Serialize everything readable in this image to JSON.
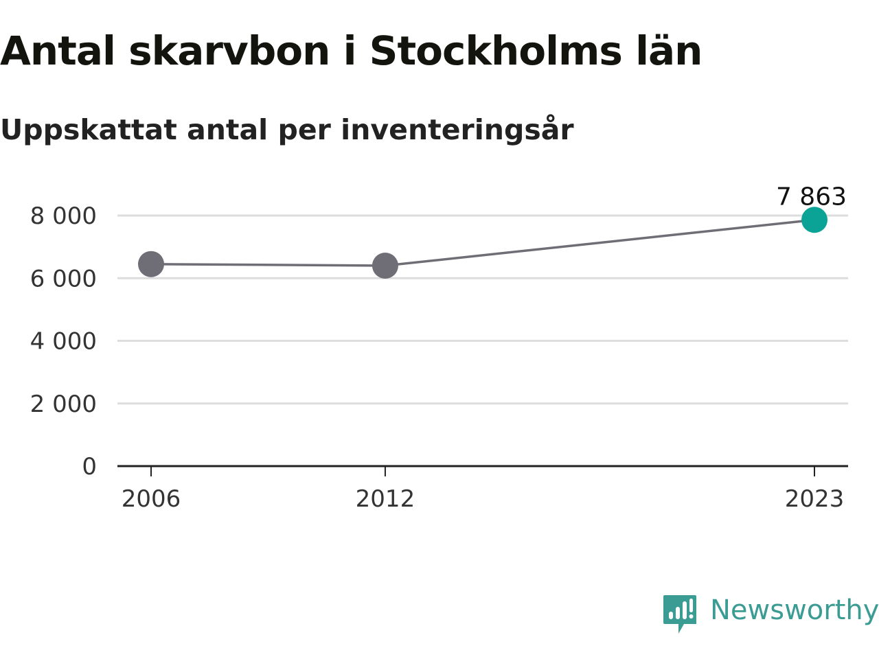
{
  "title": "Antal skarvbon i Stockholms län",
  "subtitle": "Uppskattat antal per inventeringsår",
  "brand": {
    "name": "Newsworthy",
    "color": "#3b9c93",
    "icon": "newsworthy-logo-icon"
  },
  "colors": {
    "line": "#6f6e76",
    "point": "#6f6e76",
    "highlight": "#0aa396",
    "grid": "#dddddd",
    "axis": "#222222"
  },
  "chart_data": {
    "type": "line",
    "title": "Antal skarvbon i Stockholms län",
    "subtitle": "Uppskattat antal per inventeringsår",
    "xlabel": "",
    "ylabel": "",
    "x": [
      2006,
      2012,
      2023
    ],
    "x_tick_labels": [
      "2006",
      "2012",
      "2023"
    ],
    "values": [
      6450,
      6400,
      7863
    ],
    "ylim": [
      0,
      8000
    ],
    "y_ticks": [
      0,
      2000,
      4000,
      6000,
      8000
    ],
    "y_tick_labels": [
      "0",
      "2 000",
      "4 000",
      "6 000",
      "8 000"
    ],
    "grid": true,
    "highlight": {
      "index": 2,
      "label": "7 863"
    }
  }
}
